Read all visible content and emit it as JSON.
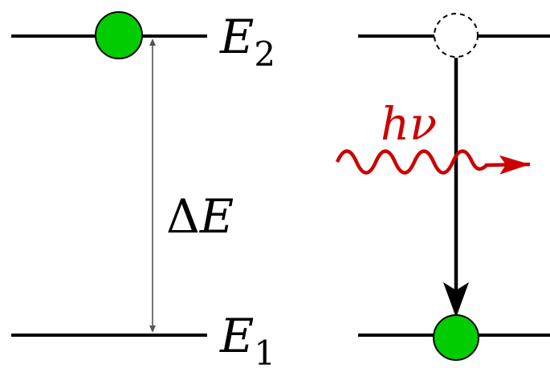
{
  "diagram": {
    "levels": {
      "upper": {
        "symbol": "E",
        "subscript": "2"
      },
      "lower": {
        "symbol": "E",
        "subscript": "1"
      }
    },
    "gap": {
      "delta": "Δ",
      "symbol": "E"
    },
    "photon": {
      "label_h": "h",
      "label_nu": "ν",
      "color": "#cc0000"
    },
    "particle_color": "#00cc00",
    "line_color": "#000000"
  }
}
